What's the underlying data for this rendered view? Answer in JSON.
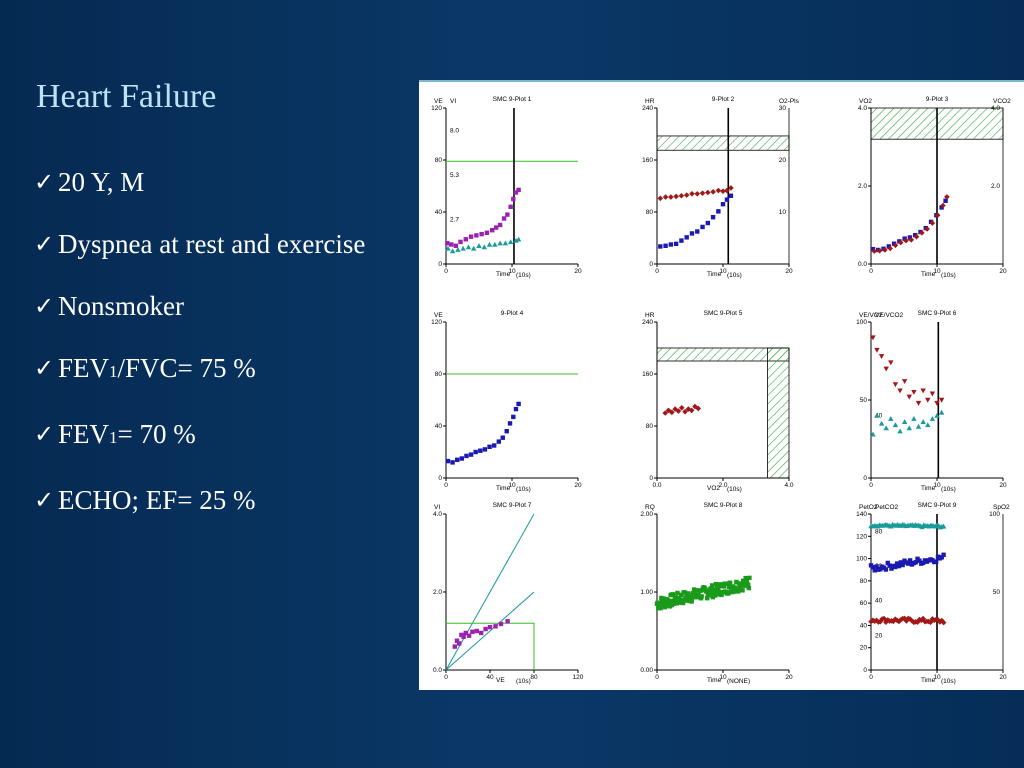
{
  "slide": {
    "title": "Heart Failure",
    "bullets": [
      {
        "check": "✓",
        "parts": [
          {
            "t": "20 Y, M"
          }
        ]
      },
      {
        "check": "✓",
        "parts": [
          {
            "t": "Dyspnea at rest and exercise"
          }
        ]
      },
      {
        "check": "✓",
        "parts": [
          {
            "t": "Nonsmoker"
          }
        ]
      },
      {
        "check": "✓",
        "parts": [
          {
            "t": "FEV"
          },
          {
            "t": "1",
            "sub": true
          },
          {
            "t": "/FVC= 75 %"
          }
        ]
      },
      {
        "check": "✓",
        "parts": [
          {
            "t": "FEV"
          },
          {
            "t": "1",
            "sub": true
          },
          {
            "t": "= 70 %"
          }
        ]
      },
      {
        "check": "✓",
        "parts": [
          {
            "t": "ECHO; EF= 25 %"
          }
        ]
      }
    ]
  },
  "colors": {
    "blue": "#1a1ab0",
    "red": "#a01818",
    "teal": "#1a9a9a",
    "purple": "#9a22b0",
    "green": "#1a9a1a",
    "limit": "#35c020",
    "hatch": "#3aa83a",
    "axis": "#000000"
  },
  "chart_data": [
    {
      "id": "plot1",
      "type": "scatter",
      "title": "SMC 9-Plot 1",
      "ylabels": [
        "VE",
        "VI"
      ],
      "xlabel": "Time",
      "xunit": "(10s)",
      "xlim": [
        0,
        20
      ],
      "ylim": [
        0,
        120
      ],
      "xticks": [
        "0",
        "10",
        "20"
      ],
      "yticks": [
        "0",
        "40",
        "80",
        "120"
      ],
      "inner_ticks": [
        "2.7",
        "5.3",
        "8.0"
      ],
      "vline": 10.3,
      "hline": 79,
      "series": [
        {
          "color": "purple",
          "marker": "square",
          "x": [
            0.2,
            0.8,
            1.5,
            2.2,
            3,
            3.8,
            4.6,
            5.4,
            6.2,
            7,
            7.6,
            8.2,
            8.8,
            9.3,
            9.8,
            10.2,
            10.6,
            11
          ],
          "y": [
            16,
            15,
            14,
            17,
            19,
            21,
            22,
            23,
            24,
            26,
            28,
            30,
            35,
            38,
            44,
            50,
            55,
            57
          ]
        },
        {
          "color": "teal",
          "marker": "triangle",
          "x": [
            0.3,
            1,
            1.8,
            2.6,
            3.4,
            4.2,
            5,
            5.8,
            6.6,
            7.4,
            8.2,
            9,
            9.8,
            10.6,
            11
          ],
          "y": [
            12,
            10,
            11,
            12,
            13,
            12,
            14,
            13,
            15,
            15,
            16,
            16,
            17,
            18,
            19
          ]
        }
      ]
    },
    {
      "id": "plot2",
      "type": "scatter",
      "title": "9-Plot 2",
      "ylabels": [
        "HR",
        "O2-Pls"
      ],
      "xlabel": "Time",
      "xunit": "(10s)",
      "xlim": [
        0,
        20
      ],
      "ylim": [
        0,
        240
      ],
      "xticks": [
        "0",
        "10",
        "20"
      ],
      "yticks": [
        "0",
        "80",
        "160",
        "240"
      ],
      "rticks": [
        "10",
        "20",
        "30"
      ],
      "vline": 10.8,
      "band": [
        175,
        197
      ],
      "series": [
        {
          "color": "red",
          "marker": "diamond",
          "x": [
            0.5,
            1.3,
            2.1,
            2.9,
            3.7,
            4.5,
            5.3,
            6.1,
            6.9,
            7.7,
            8.5,
            9.3,
            10,
            10.6,
            11.2
          ],
          "y": [
            101,
            103,
            103,
            104,
            105,
            106,
            108,
            108,
            109,
            110,
            111,
            113,
            112,
            113,
            117
          ]
        },
        {
          "color": "blue",
          "marker": "square",
          "x": [
            0.5,
            1.3,
            2.1,
            2.9,
            3.7,
            4.5,
            5.3,
            6.1,
            6.9,
            7.7,
            8.5,
            9.3,
            10,
            10.6,
            11.2
          ],
          "y": [
            27,
            28,
            30,
            31,
            36,
            41,
            47,
            50,
            57,
            63,
            72,
            81,
            92,
            99,
            105
          ]
        }
      ]
    },
    {
      "id": "plot3",
      "type": "scatter",
      "title": "9-Plot 3",
      "ylabels": [
        "VO2",
        "VCO2"
      ],
      "xlabel": "Time",
      "xunit": "(10s)",
      "xlim": [
        0,
        20
      ],
      "ylim": [
        0,
        4
      ],
      "xticks": [
        "0",
        "10",
        "20"
      ],
      "yticks": [
        "0.0",
        "2.0",
        "4.0"
      ],
      "rticks": [
        "2.0",
        "4.0"
      ],
      "vline": 10,
      "band": [
        3.2,
        4.0
      ],
      "series": [
        {
          "color": "blue",
          "marker": "square",
          "x": [
            0.3,
            1.1,
            1.9,
            2.7,
            3.5,
            4.3,
            5.1,
            5.9,
            6.7,
            7.5,
            8.3,
            9.1,
            9.9,
            10.7,
            11.3
          ],
          "y": [
            0.38,
            0.36,
            0.39,
            0.45,
            0.52,
            0.58,
            0.65,
            0.68,
            0.74,
            0.82,
            0.92,
            1.08,
            1.25,
            1.45,
            1.62
          ]
        },
        {
          "color": "red",
          "marker": "diamond",
          "x": [
            0.5,
            1.3,
            2.1,
            2.9,
            3.7,
            4.5,
            5.3,
            6.1,
            6.9,
            7.7,
            8.5,
            9.3,
            10.1,
            10.9,
            11.5
          ],
          "y": [
            0.33,
            0.34,
            0.36,
            0.4,
            0.48,
            0.55,
            0.6,
            0.62,
            0.7,
            0.8,
            0.9,
            1.05,
            1.25,
            1.5,
            1.72
          ]
        }
      ]
    },
    {
      "id": "plot4",
      "type": "scatter",
      "title": "9-Plot 4",
      "ylabels": [
        "VE"
      ],
      "xlabel": "Time",
      "xunit": "(10s)",
      "xlim": [
        0,
        20
      ],
      "ylim": [
        0,
        120
      ],
      "xticks": [
        "0",
        "10",
        "20"
      ],
      "yticks": [
        "0",
        "40",
        "80",
        "120"
      ],
      "hline": 80,
      "series": [
        {
          "color": "blue",
          "marker": "square",
          "x": [
            0.3,
            1,
            1.7,
            2.4,
            3.1,
            3.8,
            4.5,
            5.2,
            5.9,
            6.6,
            7.3,
            8,
            8.6,
            9.2,
            9.7,
            10.2,
            10.6,
            11
          ],
          "y": [
            13,
            12,
            14,
            15,
            17,
            18,
            20,
            21,
            22,
            24,
            25,
            28,
            31,
            36,
            42,
            47,
            53,
            57
          ]
        }
      ]
    },
    {
      "id": "plot5",
      "type": "scatter",
      "title": "SMC 9-Plot 5",
      "ylabels": [
        "HR"
      ],
      "xlabel": "VO2",
      "xunit": "(10s)",
      "xlim": [
        0,
        4
      ],
      "ylim": [
        0,
        240
      ],
      "xticks": [
        "0.0",
        "2.0",
        "4.0"
      ],
      "yticks": [
        "0",
        "80",
        "160",
        "240"
      ],
      "band": [
        180,
        200
      ],
      "vband": [
        3.35,
        4.0
      ],
      "series": [
        {
          "color": "red",
          "marker": "diamond",
          "x": [
            0.25,
            0.35,
            0.45,
            0.55,
            0.65,
            0.75,
            0.85,
            0.95,
            1.05,
            1.15,
            1.25
          ],
          "y": [
            100,
            104,
            101,
            106,
            103,
            108,
            102,
            106,
            104,
            110,
            107
          ]
        }
      ]
    },
    {
      "id": "plot6",
      "type": "scatter",
      "title": "SMC 9-Plot 6",
      "ylabels": [
        "VE/VO2",
        "VE/VCO2"
      ],
      "xlabel": "Time",
      "xunit": "(10s)",
      "xlim": [
        0,
        20
      ],
      "ylim": [
        0,
        100
      ],
      "xticks": [
        "0",
        "10",
        "20"
      ],
      "yticks": [
        "0",
        "50",
        "100"
      ],
      "inner_ticks": [
        "40"
      ],
      "vline": 10.2,
      "series": [
        {
          "color": "red",
          "marker": "triangle-down",
          "x": [
            0.3,
            0.9,
            1.6,
            2.3,
            3,
            3.7,
            4.4,
            5.1,
            5.8,
            6.5,
            7.2,
            7.9,
            8.6,
            9.3,
            10,
            10.7
          ],
          "y": [
            90,
            82,
            78,
            70,
            74,
            60,
            56,
            62,
            52,
            55,
            48,
            56,
            50,
            54,
            48,
            50
          ]
        },
        {
          "color": "teal",
          "marker": "triangle",
          "x": [
            0.3,
            0.9,
            1.6,
            2.3,
            3,
            3.7,
            4.4,
            5.1,
            5.8,
            6.5,
            7.2,
            7.9,
            8.6,
            9.3,
            10,
            10.7
          ],
          "y": [
            28,
            40,
            35,
            32,
            38,
            34,
            30,
            36,
            32,
            38,
            33,
            36,
            34,
            38,
            40,
            42
          ]
        }
      ]
    },
    {
      "id": "plot7",
      "type": "scatter",
      "title": "SMC 9-Plot 7",
      "ylabels": [
        "VI"
      ],
      "xlabel": "VE",
      "xunit": "(10s)",
      "xlim": [
        0,
        120
      ],
      "ylim": [
        0,
        4
      ],
      "xticks": [
        "0",
        "40",
        "80",
        "120"
      ],
      "yticks": [
        "0.0",
        "2.0",
        "4.0"
      ],
      "box": [
        80,
        1.2
      ],
      "lines": [
        [
          0,
          0,
          80,
          4.0
        ],
        [
          0,
          0,
          80,
          2.0
        ]
      ],
      "series": [
        {
          "color": "purple",
          "marker": "square",
          "x": [
            8,
            10,
            12,
            14,
            16,
            18,
            21,
            24,
            28,
            32,
            36,
            40,
            45,
            50,
            56
          ],
          "y": [
            0.6,
            0.75,
            0.68,
            0.9,
            0.85,
            0.95,
            0.88,
            0.98,
            1.0,
            0.95,
            1.05,
            1.1,
            1.12,
            1.18,
            1.25
          ]
        }
      ]
    },
    {
      "id": "plot8",
      "type": "scatter",
      "title": "SMC 9-Plot 8",
      "ylabels": [
        "RQ"
      ],
      "xlabel": "Time",
      "xunit": "(NONE)",
      "xlim": [
        0,
        20
      ],
      "ylim": [
        0,
        2
      ],
      "xticks": [
        "0",
        "10",
        "20"
      ],
      "yticks": [
        "0.00",
        "1.00",
        "2.00"
      ],
      "series": [
        {
          "color": "green",
          "marker": "square",
          "dense": true,
          "from": 0,
          "to": 14,
          "ystart": 0.85,
          "yend": 1.12,
          "noise": 0.08,
          "count": 150
        }
      ]
    },
    {
      "id": "plot9",
      "type": "scatter",
      "title": "SMC 9-Plot 9",
      "ylabels": [
        "PetO2",
        "PetCO2",
        "SpO2"
      ],
      "xlabel": "Time",
      "xunit": "(10s)",
      "xlim": [
        0,
        20
      ],
      "ylim": [
        0,
        140
      ],
      "xticks": [
        "0",
        "10",
        "20"
      ],
      "yticks": [
        "0",
        "20",
        "40",
        "60",
        "80",
        "100",
        "120",
        "140"
      ],
      "inner_ticks": [
        "20",
        "40",
        "60",
        "80"
      ],
      "rticks": [
        "50",
        "100"
      ],
      "vline": 10,
      "series": [
        {
          "color": "teal",
          "marker": "triangle",
          "dense": true,
          "from": 0,
          "to": 11,
          "ystart": 130,
          "yend": 129,
          "noise": 1,
          "count": 45
        },
        {
          "color": "blue",
          "marker": "square",
          "dense": true,
          "from": 0,
          "to": 11,
          "ystart": 91,
          "yend": 101,
          "noise": 3,
          "count": 40
        },
        {
          "color": "red",
          "marker": "diamond",
          "dense": true,
          "from": 0,
          "to": 11,
          "ystart": 45,
          "yend": 44,
          "noise": 2,
          "count": 40
        }
      ]
    }
  ]
}
